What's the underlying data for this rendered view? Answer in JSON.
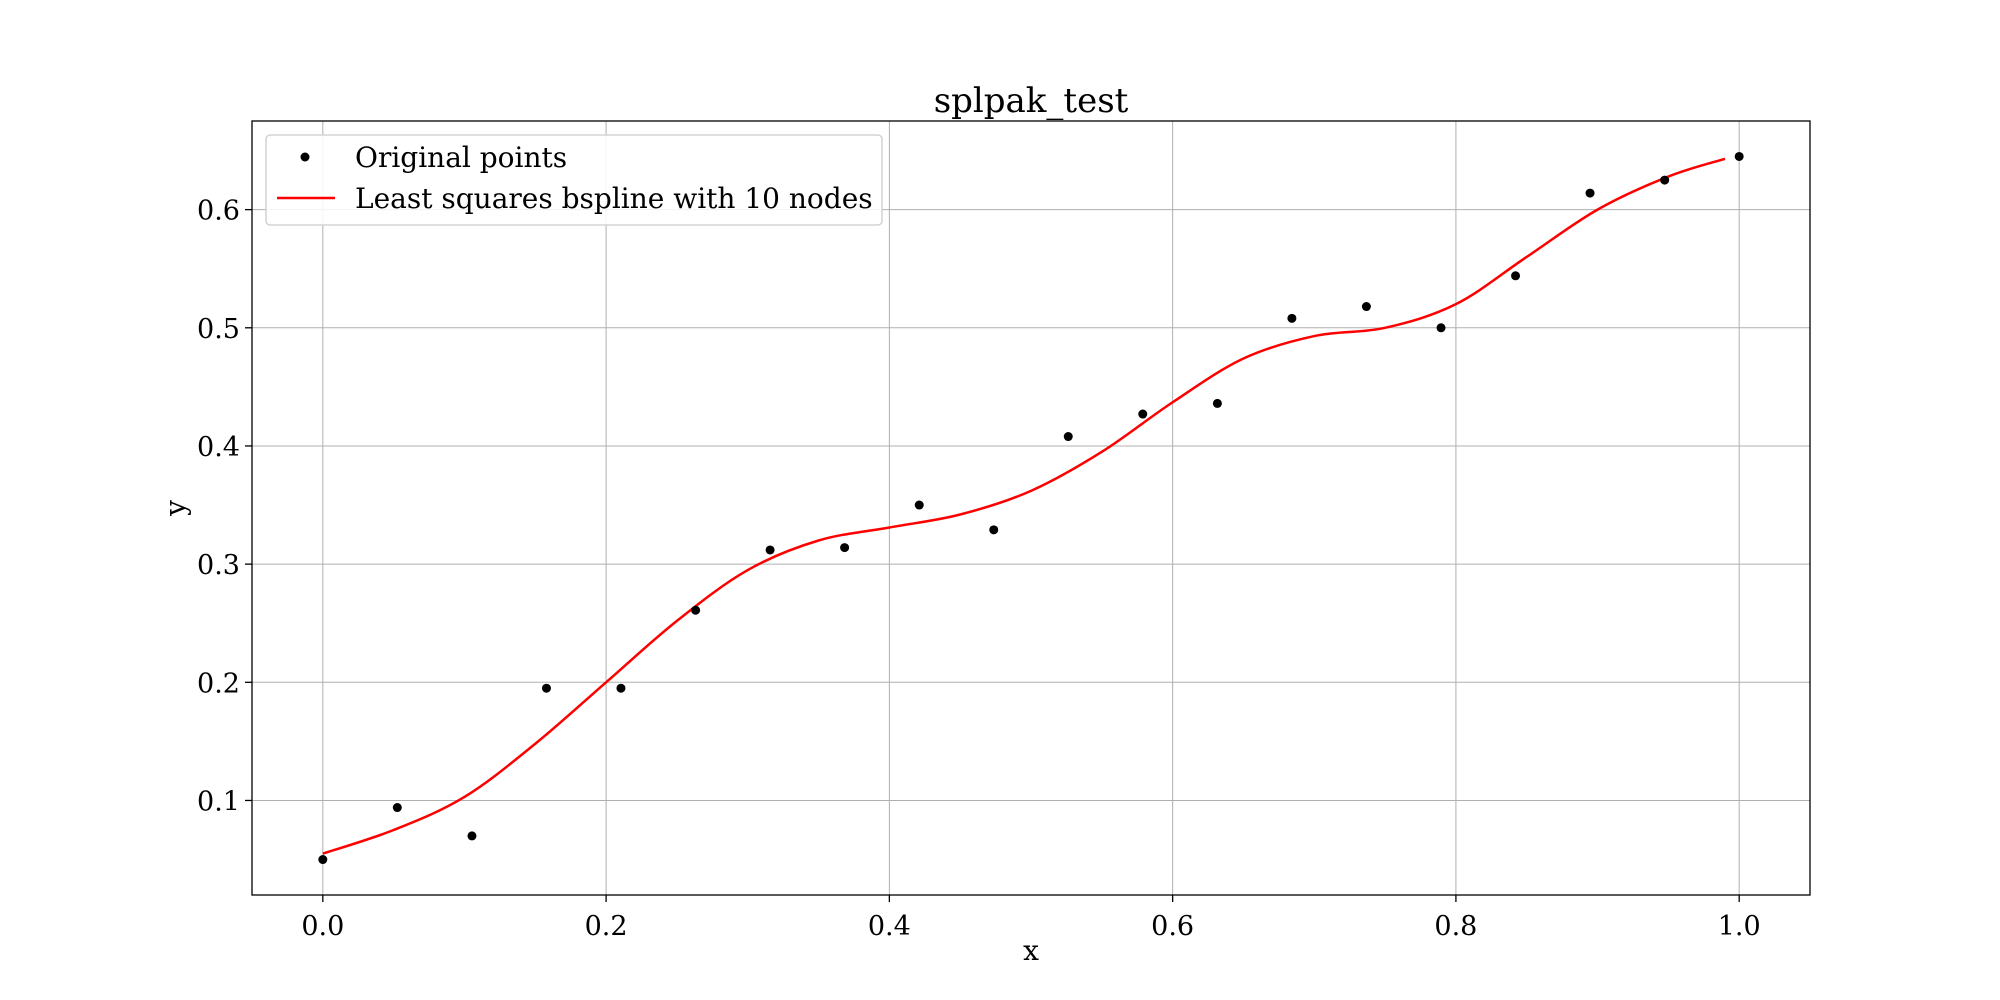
{
  "chart_data": {
    "type": "scatter",
    "title": "splpak_test",
    "xlabel": "x",
    "ylabel": "y",
    "xlim": [
      -0.05,
      1.05
    ],
    "ylim": [
      0.02,
      0.675
    ],
    "xticks": [
      "0.0",
      "0.2",
      "0.4",
      "0.6",
      "0.8",
      "1.0"
    ],
    "yticks": [
      "0.1",
      "0.2",
      "0.3",
      "0.4",
      "0.5",
      "0.6"
    ],
    "grid": true,
    "legend_position": "top-left",
    "series": [
      {
        "name": "Original points",
        "kind": "scatter",
        "color": "#000000",
        "x": [
          0.0,
          0.0526,
          0.1053,
          0.1579,
          0.2105,
          0.2632,
          0.3158,
          0.3684,
          0.4211,
          0.4737,
          0.5263,
          0.5789,
          0.6316,
          0.6842,
          0.7368,
          0.7895,
          0.8421,
          0.8947,
          0.9474,
          1.0
        ],
        "y": [
          0.05,
          0.094,
          0.07,
          0.195,
          0.195,
          0.261,
          0.312,
          0.314,
          0.35,
          0.329,
          0.408,
          0.427,
          0.436,
          0.508,
          0.518,
          0.5,
          0.544,
          0.614,
          0.625,
          0.645
        ]
      },
      {
        "name": "Least squares bspline with 10 nodes",
        "kind": "line",
        "color": "#ff0000",
        "x": [
          0.0,
          0.05,
          0.1,
          0.15,
          0.2,
          0.25,
          0.3,
          0.35,
          0.4,
          0.45,
          0.5,
          0.55,
          0.6,
          0.65,
          0.7,
          0.75,
          0.8,
          0.85,
          0.9,
          0.95,
          0.99
        ],
        "y": [
          0.055,
          0.075,
          0.103,
          0.148,
          0.2,
          0.252,
          0.295,
          0.32,
          0.331,
          0.342,
          0.362,
          0.395,
          0.437,
          0.474,
          0.493,
          0.5,
          0.52,
          0.56,
          0.6,
          0.628,
          0.643
        ]
      }
    ]
  }
}
